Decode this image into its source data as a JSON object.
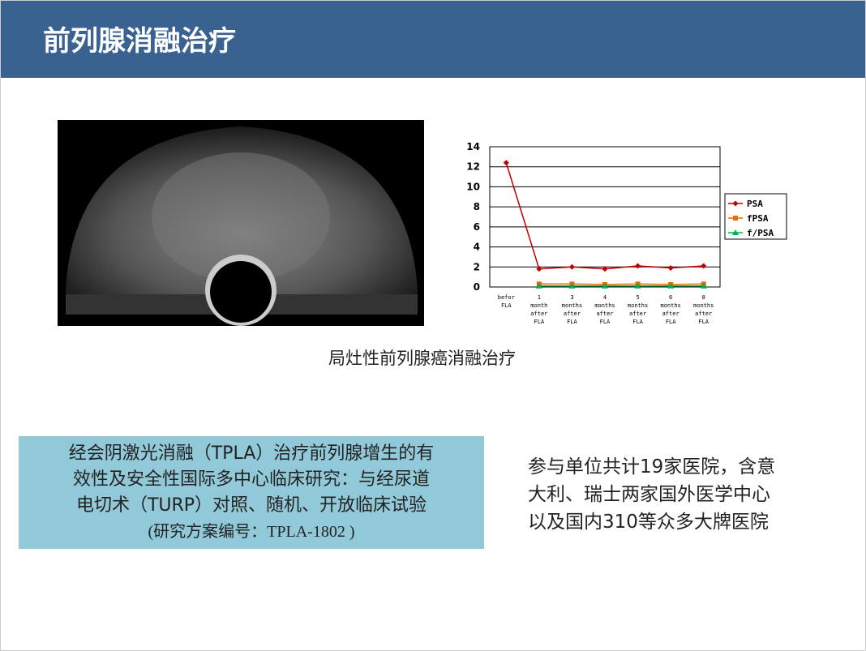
{
  "header": {
    "title": "前列腺消融治疗"
  },
  "chart": {
    "type": "line",
    "categories": [
      "befor FLA",
      "1 month after FLA",
      "3 months after FLA",
      "4 months after FLA",
      "5 months after FLA",
      "6 months after FLA",
      "8 months after FLA"
    ],
    "series": [
      {
        "name": "PSA",
        "color": "#c00000",
        "marker": "diamond",
        "values": [
          12.4,
          1.8,
          2.0,
          1.8,
          2.1,
          1.9,
          2.1
        ]
      },
      {
        "name": "fPSA",
        "color": "#e46c0a",
        "marker": "square",
        "values": [
          null,
          0.3,
          0.3,
          0.25,
          0.3,
          0.25,
          0.3
        ]
      },
      {
        "name": "f/PSA",
        "color": "#00b050",
        "marker": "triangle",
        "values": [
          null,
          0.1,
          0.1,
          0.1,
          0.1,
          0.1,
          0.1
        ]
      }
    ],
    "ylim": [
      0,
      14
    ],
    "yticks": [
      0,
      2,
      4,
      6,
      8,
      10,
      12,
      14
    ],
    "grid": true,
    "legend": "right"
  },
  "caption": "局灶性前列腺癌消融治疗",
  "study_box": {
    "lines": [
      "经会阴激光消融（TPLA）治疗前列腺增生的有",
      "效性及安全性国际多中心临床研究：与经尿道",
      "电切术（TURP）对照、随机、开放临床试验",
      "(研究方案编号：TPLA-1802 )"
    ]
  },
  "note": {
    "lines": [
      "参与单位共计19家医院，含意",
      "大利、瑞士两家国外医学中心",
      "以及国内310等众多大牌医院"
    ]
  }
}
